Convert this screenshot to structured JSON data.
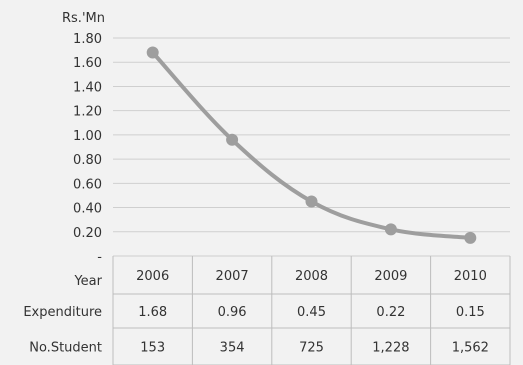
{
  "chart_data": {
    "type": "line",
    "ylabel": "Rs.'Mn",
    "ylim": [
      0,
      1.8
    ],
    "yticks": [
      "-",
      "0.20",
      "0.40",
      "0.60",
      "0.80",
      "1.00",
      "1.20",
      "1.40",
      "1.60",
      "1.80"
    ],
    "ytick_values": [
      0,
      0.2,
      0.4,
      0.6,
      0.8,
      1.0,
      1.2,
      1.4,
      1.6,
      1.8
    ],
    "grid": true,
    "categories": [
      "2006",
      "2007",
      "2008",
      "2009",
      "2010"
    ],
    "series": [
      {
        "name": "Expenditure",
        "values": [
          1.68,
          0.96,
          0.45,
          0.22,
          0.15
        ],
        "color": "#9e9e9e"
      }
    ],
    "table": {
      "header_label": "Year",
      "rows": [
        {
          "label": "Expenditure",
          "cells": [
            "1.68",
            "0.96",
            "0.45",
            "0.22",
            "0.15"
          ]
        },
        {
          "label": "No.Student",
          "cells": [
            "153",
            "354",
            "725",
            "1,228",
            "1,562"
          ]
        }
      ]
    }
  }
}
